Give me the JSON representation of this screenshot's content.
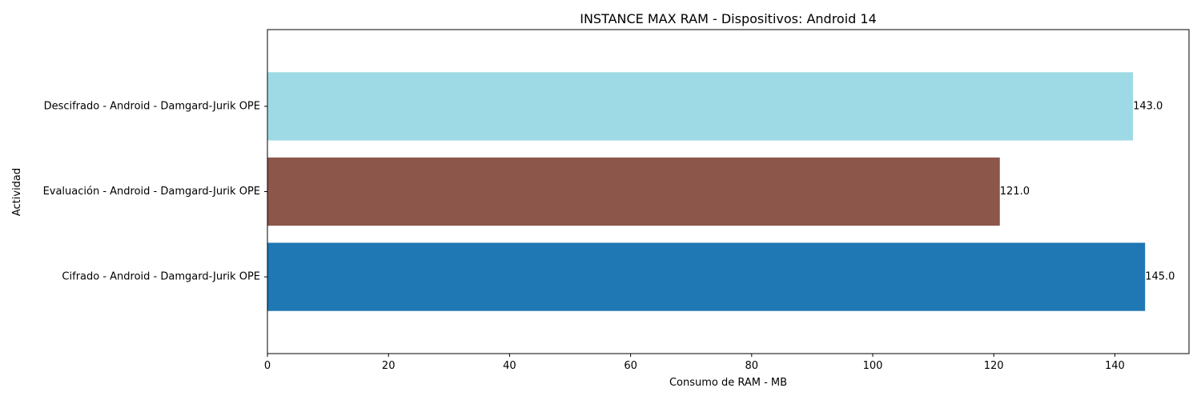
{
  "chart_data": {
    "type": "bar",
    "orientation": "horizontal",
    "title": "INSTANCE MAX RAM - Dispositivos: Android 14",
    "xlabel": "Consumo de RAM - MB",
    "ylabel": "Actividad",
    "xlim": [
      0,
      152.25
    ],
    "xticks": [
      0,
      20,
      40,
      60,
      80,
      100,
      120,
      140
    ],
    "categories": [
      "Cifrado - Android - Damgard-Jurik OPE",
      "Evaluación - Android - Damgard-Jurik OPE",
      "Descifrado - Android - Damgard-Jurik OPE"
    ],
    "values": [
      145.0,
      121.0,
      143.0
    ],
    "value_labels": [
      "145.0",
      "121.0",
      "143.0"
    ],
    "colors": [
      "#1f77b4",
      "#8c564b",
      "#9edae5"
    ],
    "grid": false,
    "legend": "none"
  }
}
